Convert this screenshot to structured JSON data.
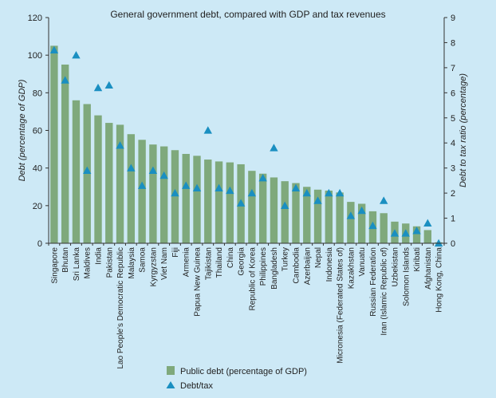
{
  "chart_data": {
    "type": "bar",
    "title": "General government debt, compared with GDP and tax revenues",
    "ylabel": "Debt (percentage of GDP)",
    "y2label": "Debt to tax ratio (percentage)",
    "ylim": [
      0,
      120
    ],
    "yticks": [
      0,
      20,
      40,
      60,
      80,
      100,
      120
    ],
    "y2lim": [
      0,
      9
    ],
    "y2ticks": [
      0,
      1,
      2,
      3,
      4,
      5,
      6,
      7,
      8,
      9
    ],
    "colors": {
      "bar": "#7fa97c",
      "marker": "#1a8fc1",
      "background": "#cde9f6"
    },
    "categories": [
      "Singapore",
      "Bhutan",
      "Sri Lanka",
      "Maldives",
      "India",
      "Pakistan",
      "Lao People's Democratic Republic",
      "Malaysia",
      "Samoa",
      "Kyrgyzstan",
      "Viet Nam",
      "Fiji",
      "Armenia",
      "Papua New Guinea",
      "Tajikistan",
      "Thailand",
      "China",
      "Georgia",
      "Republic of Korea",
      "Philippines",
      "Bangladesh",
      "Turkey",
      "Cambodia",
      "Azerbaijan",
      "Nepal",
      "Indonesia",
      "Micronesia (Federated States of)",
      "Kazakhstan",
      "Vanuatu",
      "Russian Federation",
      "Iran (Islamic Republic of)",
      "Uzbekistan",
      "Solomon Islands",
      "Kiribati",
      "Afghanistan",
      "Hong Kong, China"
    ],
    "series": [
      {
        "name": "Public debt (percentage of GDP)",
        "type": "bar",
        "axis": "left",
        "values": [
          105,
          95,
          76,
          74,
          68,
          64,
          63,
          58,
          55,
          52.5,
          51.5,
          49.5,
          47.5,
          46.5,
          44.5,
          43.5,
          43,
          42,
          38.5,
          37,
          35,
          33,
          32,
          30,
          28.5,
          28,
          27,
          22,
          21,
          17,
          16,
          11.5,
          10.5,
          9,
          7,
          0.5
        ]
      },
      {
        "name": "Debt/tax",
        "type": "scatter",
        "axis": "right",
        "values": [
          7.7,
          6.5,
          7.5,
          2.9,
          6.2,
          6.3,
          3.9,
          3.0,
          2.3,
          2.9,
          2.7,
          2.0,
          2.3,
          2.2,
          4.5,
          2.2,
          2.1,
          1.6,
          2.0,
          2.6,
          3.8,
          1.5,
          2.2,
          2.0,
          1.7,
          2.0,
          2.0,
          1.1,
          1.3,
          0.7,
          1.7,
          0.4,
          0.4,
          0.5,
          0.8,
          0.0
        ]
      }
    ],
    "legend": {
      "placement": "bottom-center"
    },
    "grid": false
  }
}
